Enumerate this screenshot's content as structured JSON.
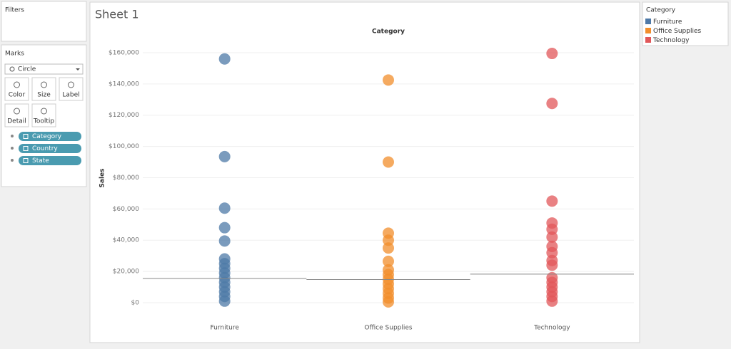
{
  "ui": {
    "filters_title": "Filters",
    "marks_title": "Marks",
    "mark_type": "Circle",
    "mark_buttons": [
      "Color",
      "Size",
      "Label",
      "Detail",
      "Tooltip"
    ],
    "pills": [
      "Category",
      "Country",
      "State"
    ],
    "legend_title": "Category"
  },
  "chart_data": {
    "type": "strip",
    "title": "Sheet 1",
    "column_header": "Category",
    "y_label": "Sales",
    "categories": [
      "Furniture",
      "Office Supplies",
      "Technology"
    ],
    "ylim": [
      -11400,
      170000
    ],
    "yticks": [
      {
        "value": 0,
        "label": "$0"
      },
      {
        "value": 20000,
        "label": "$20,000"
      },
      {
        "value": 40000,
        "label": "$40,000"
      },
      {
        "value": 60000,
        "label": "$60,000"
      },
      {
        "value": 80000,
        "label": "$80,000"
      },
      {
        "value": 100000,
        "label": "$100,000"
      },
      {
        "value": 120000,
        "label": "$120,000"
      },
      {
        "value": 140000,
        "label": "$140,000"
      },
      {
        "value": 160000,
        "label": "$160,000"
      }
    ],
    "grid": true,
    "series": [
      {
        "name": "Furniture",
        "color": "#4e79a7",
        "values": [
          156000,
          93500,
          60500,
          48000,
          39500,
          28000,
          25000,
          22000,
          19000,
          16000,
          13000,
          10000,
          7000,
          4000,
          1000
        ],
        "reference_line": 15500
      },
      {
        "name": "Office Supplies",
        "color": "#f28e2b",
        "values": [
          142500,
          90000,
          44500,
          40000,
          35000,
          26500,
          21000,
          18000,
          15000,
          12000,
          9000,
          6000,
          3000,
          500
        ],
        "reference_line": 14800
      },
      {
        "name": "Technology",
        "color": "#e15759",
        "values": [
          159500,
          127500,
          65000,
          51000,
          47000,
          42000,
          36000,
          32000,
          27000,
          24000,
          16000,
          13000,
          10000,
          7000,
          4000,
          1000
        ],
        "reference_line": 18300
      }
    ]
  }
}
